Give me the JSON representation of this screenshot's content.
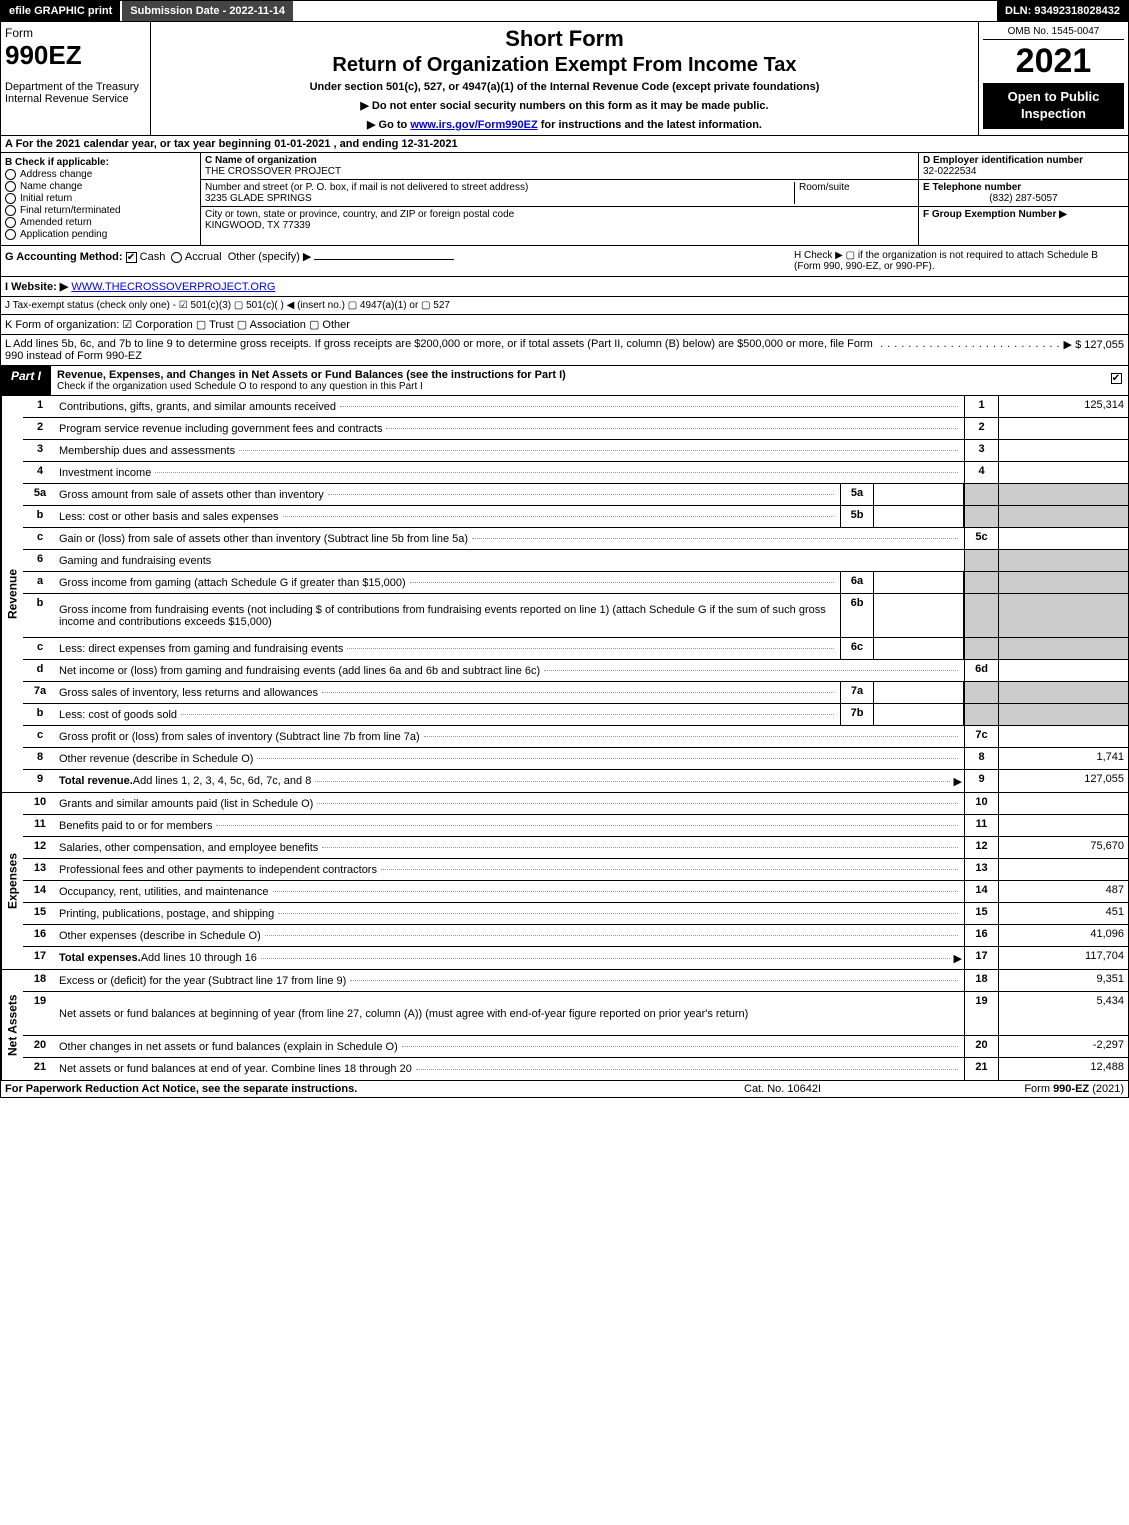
{
  "topbar": {
    "efile": "efile GRAPHIC print",
    "submission": "Submission Date - 2022-11-14",
    "dln": "DLN: 93492318028432"
  },
  "header": {
    "form_word": "Form",
    "form_num": "990EZ",
    "dept1": "Department of the Treasury",
    "dept2": "Internal Revenue Service",
    "short": "Short Form",
    "title": "Return of Organization Exempt From Income Tax",
    "under": "Under section 501(c), 527, or 4947(a)(1) of the Internal Revenue Code (except private foundations)",
    "note1": "▶ Do not enter social security numbers on this form as it may be made public.",
    "note2_pre": "▶ Go to ",
    "note2_link": "www.irs.gov/Form990EZ",
    "note2_post": " for instructions and the latest information.",
    "omb": "OMB No. 1545-0047",
    "year": "2021",
    "open": "Open to Public Inspection"
  },
  "a": "A  For the 2021 calendar year, or tax year beginning 01-01-2021 , and ending 12-31-2021",
  "b": {
    "label": "B  Check if applicable:",
    "opts": [
      "Address change",
      "Name change",
      "Initial return",
      "Final return/terminated",
      "Amended return",
      "Application pending"
    ]
  },
  "c": {
    "name_lbl": "C Name of organization",
    "name": "THE CROSSOVER PROJECT",
    "addr_lbl": "Number and street (or P. O. box, if mail is not delivered to street address)",
    "addr": "3235 GLADE SPRINGS",
    "room_lbl": "Room/suite",
    "city_lbl": "City or town, state or province, country, and ZIP or foreign postal code",
    "city": "KINGWOOD, TX  77339"
  },
  "d": {
    "ein_lbl": "D Employer identification number",
    "ein": "32-0222534",
    "tel_lbl": "E Telephone number",
    "tel": "(832) 287-5057",
    "grp_lbl": "F Group Exemption Number  ▶"
  },
  "g": {
    "label": "G Accounting Method:",
    "cash": "Cash",
    "accrual": "Accrual",
    "other": "Other (specify) ▶"
  },
  "h": "H  Check ▶  ▢  if the organization is not required to attach Schedule B (Form 990, 990-EZ, or 990-PF).",
  "i": {
    "label": "I Website: ▶",
    "val": "WWW.THECROSSOVERPROJECT.ORG"
  },
  "j": "J Tax-exempt status (check only one) -  ☑ 501(c)(3)  ▢ 501(c)(  ) ◀ (insert no.)  ▢ 4947(a)(1) or  ▢ 527",
  "k": "K Form of organization:  ☑ Corporation  ▢ Trust  ▢ Association  ▢ Other",
  "l": {
    "text": "L Add lines 5b, 6c, and 7b to line 9 to determine gross receipts. If gross receipts are $200,000 or more, or if total assets (Part II, column (B) below) are $500,000 or more, file Form 990 instead of Form 990-EZ",
    "amt": "▶ $ 127,055"
  },
  "part1": {
    "tag": "Part I",
    "title": "Revenue, Expenses, and Changes in Net Assets or Fund Balances (see the instructions for Part I)",
    "sub": "Check if the organization used Schedule O to respond to any question in this Part I"
  },
  "sides": {
    "revenue": "Revenue",
    "expenses": "Expenses",
    "net": "Net Assets"
  },
  "rev": [
    {
      "n": "1",
      "d": "Contributions, gifts, grants, and similar amounts received",
      "r": "1",
      "a": "125,314"
    },
    {
      "n": "2",
      "d": "Program service revenue including government fees and contracts",
      "r": "2",
      "a": ""
    },
    {
      "n": "3",
      "d": "Membership dues and assessments",
      "r": "3",
      "a": ""
    },
    {
      "n": "4",
      "d": "Investment income",
      "r": "4",
      "a": ""
    },
    {
      "n": "5a",
      "d": "Gross amount from sale of assets other than inventory",
      "m": "5a",
      "shade": true
    },
    {
      "n": "b",
      "d": "Less: cost or other basis and sales expenses",
      "m": "5b",
      "shade": true
    },
    {
      "n": "c",
      "d": "Gain or (loss) from sale of assets other than inventory (Subtract line 5b from line 5a)",
      "r": "5c",
      "a": ""
    },
    {
      "n": "6",
      "d": "Gaming and fundraising events",
      "plain": true
    },
    {
      "n": "a",
      "d": "Gross income from gaming (attach Schedule G if greater than $15,000)",
      "m": "6a",
      "shade": true
    },
    {
      "n": "b",
      "d": "Gross income from fundraising events (not including $                  of contributions from fundraising events reported on line 1) (attach Schedule G if the sum of such gross income and contributions exceeds $15,000)",
      "m": "6b",
      "shade": true,
      "tall": true
    },
    {
      "n": "c",
      "d": "Less: direct expenses from gaming and fundraising events",
      "m": "6c",
      "shade": true
    },
    {
      "n": "d",
      "d": "Net income or (loss) from gaming and fundraising events (add lines 6a and 6b and subtract line 6c)",
      "r": "6d",
      "a": ""
    },
    {
      "n": "7a",
      "d": "Gross sales of inventory, less returns and allowances",
      "m": "7a",
      "shade": true
    },
    {
      "n": "b",
      "d": "Less: cost of goods sold",
      "m": "7b",
      "shade": true
    },
    {
      "n": "c",
      "d": "Gross profit or (loss) from sales of inventory (Subtract line 7b from line 7a)",
      "r": "7c",
      "a": ""
    },
    {
      "n": "8",
      "d": "Other revenue (describe in Schedule O)",
      "r": "8",
      "a": "1,741"
    },
    {
      "n": "9",
      "d": "Total revenue. Add lines 1, 2, 3, 4, 5c, 6d, 7c, and 8",
      "r": "9",
      "a": "127,055",
      "bold": true,
      "arrow": true
    }
  ],
  "exp": [
    {
      "n": "10",
      "d": "Grants and similar amounts paid (list in Schedule O)",
      "r": "10",
      "a": ""
    },
    {
      "n": "11",
      "d": "Benefits paid to or for members",
      "r": "11",
      "a": ""
    },
    {
      "n": "12",
      "d": "Salaries, other compensation, and employee benefits",
      "r": "12",
      "a": "75,670"
    },
    {
      "n": "13",
      "d": "Professional fees and other payments to independent contractors",
      "r": "13",
      "a": ""
    },
    {
      "n": "14",
      "d": "Occupancy, rent, utilities, and maintenance",
      "r": "14",
      "a": "487"
    },
    {
      "n": "15",
      "d": "Printing, publications, postage, and shipping",
      "r": "15",
      "a": "451"
    },
    {
      "n": "16",
      "d": "Other expenses (describe in Schedule O)",
      "r": "16",
      "a": "41,096"
    },
    {
      "n": "17",
      "d": "Total expenses. Add lines 10 through 16",
      "r": "17",
      "a": "117,704",
      "bold": true,
      "arrow": true
    }
  ],
  "net": [
    {
      "n": "18",
      "d": "Excess or (deficit) for the year (Subtract line 17 from line 9)",
      "r": "18",
      "a": "9,351"
    },
    {
      "n": "19",
      "d": "Net assets or fund balances at beginning of year (from line 27, column (A)) (must agree with end-of-year figure reported on prior year's return)",
      "r": "19",
      "a": "5,434",
      "tall": true
    },
    {
      "n": "20",
      "d": "Other changes in net assets or fund balances (explain in Schedule O)",
      "r": "20",
      "a": "-2,297"
    },
    {
      "n": "21",
      "d": "Net assets or fund balances at end of year. Combine lines 18 through 20",
      "r": "21",
      "a": "12,488"
    }
  ],
  "footer": {
    "left": "For Paperwork Reduction Act Notice, see the separate instructions.",
    "mid": "Cat. No. 10642I",
    "right_pre": "Form ",
    "right_bold": "990-EZ",
    "right_post": " (2021)"
  }
}
